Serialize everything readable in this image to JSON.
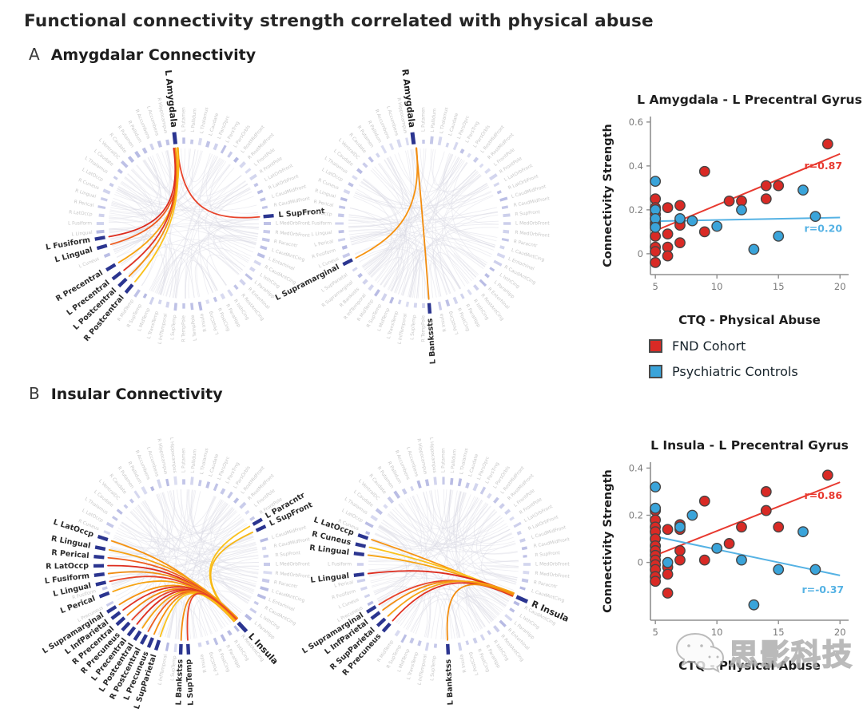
{
  "title": "Functional connectivity strength correlated with physical abuse",
  "watermark": {
    "text": "思影科技",
    "icon": "wechat-icon"
  },
  "panels": {
    "a": {
      "tag": "A",
      "heading": "Amygdalar Connectivity"
    },
    "b": {
      "tag": "B",
      "heading": "Insular Connectivity"
    }
  },
  "legend": {
    "items": [
      {
        "label": "FND Cohort",
        "color": "#d92a25"
      },
      {
        "label": "Psychiatric Controls",
        "color": "#3aa4da"
      }
    ]
  },
  "colors": {
    "ring_tick": "#b1b5e1",
    "highlight_tick": "#2b3590",
    "background_chord": "#dcdce6",
    "red_line": "#e8392f",
    "blue_line": "#55b2e4"
  },
  "ring_labels": [
    "L Putamen",
    "L Pallidum",
    "L Thalamus",
    "L Caudate",
    "L ParsOprc",
    "L ParsTrng",
    "L ParsOrbls",
    "L RostMidFront",
    "R RostMidFront",
    "L FrontPole",
    "R FrontPole",
    "L LatOrbFront",
    "R LatOrbFront",
    "L CaudMidFront",
    "R CaudMidFront",
    "R SupFront",
    "L MedOrbFront",
    "R MedOrbFront",
    "R Paracntr",
    "L CaudAntCing",
    "L Entorhinal",
    "R CaudAntCing",
    "L IsthCing",
    "L ParaHipp",
    "R Entorhinal",
    "R RostAntCing",
    "R IsthCing",
    "R ParaHipp",
    "R PostCing",
    "L PostCing",
    "R Insula",
    "L TempPole",
    "R TempPole",
    "L SupTemp",
    "L InfTemporal",
    "L TransTemp",
    "L MidTemp",
    "R SupTemp",
    "R MidTemp",
    "R InfTemporal",
    "R Bankssts",
    "R Supramarginal",
    "L SupParietal",
    "L Precuneus",
    "L Cuneus",
    "R Fusiform",
    "L Perical",
    "L Lingual",
    "L Fusiform",
    "R LatOccp",
    "R Perical",
    "R Lingual",
    "R Cuneus",
    "L LatOccp",
    "L Thalamus",
    "L Caudate",
    "L VentralDC",
    "R Caudate",
    "R Putamen",
    "R Pallidum",
    "R Accumbens",
    "L Accumbens",
    "R Hippocampus",
    "L Hippocampus"
  ],
  "connectograms": [
    {
      "name": "left-amygdala-circle",
      "panel": "A",
      "seed": 7,
      "hub": {
        "label": "L Amygdala",
        "angle": 354
      },
      "targets": [
        {
          "label": "L SupFront",
          "angle": 85,
          "color": "#e8432a"
        },
        {
          "label": "L Fusiform",
          "angle": 260,
          "color": "#dd2c1e"
        },
        {
          "label": "L Lingual",
          "angle": 254,
          "color": "#ef5d1f"
        },
        {
          "label": "R Precentral",
          "angle": 239,
          "color": "#f6a312"
        },
        {
          "label": "L Precentral",
          "angle": 232,
          "color": "#e03324"
        },
        {
          "label": "L Postcentral",
          "angle": 226,
          "color": "#f28c0e"
        },
        {
          "label": "R Postcentral",
          "angle": 220,
          "color": "#fbc21a"
        }
      ]
    },
    {
      "name": "right-amygdala-circle",
      "panel": "A",
      "seed": 11,
      "hub": {
        "label": "R Amygdala",
        "angle": 353
      },
      "targets": [
        {
          "label": "L Supramarginal",
          "angle": 243,
          "color": "#f6920f"
        },
        {
          "label": "L Bankssts",
          "angle": 176,
          "color": "#f28c0e"
        }
      ]
    },
    {
      "name": "left-insula-circle",
      "panel": "B",
      "seed": 23,
      "hub": {
        "label": "L Insula",
        "angle": 137
      },
      "targets": [
        {
          "label": "L Paracntr",
          "angle": 60,
          "color": "#fbc21a"
        },
        {
          "label": "L SupFront",
          "angle": 65,
          "color": "#f7b713"
        },
        {
          "label": "L LatOccp",
          "angle": 288,
          "color": "#f6920f"
        },
        {
          "label": "R Lingual",
          "angle": 281,
          "color": "#f6a312"
        },
        {
          "label": "R Perical",
          "angle": 275,
          "color": "#ef5d1f"
        },
        {
          "label": "R LatOccp",
          "angle": 269,
          "color": "#dd2c1e"
        },
        {
          "label": "L Fusiform",
          "angle": 263,
          "color": "#f28c0e"
        },
        {
          "label": "L Lingual",
          "angle": 257,
          "color": "#e8432a"
        },
        {
          "label": "L Perical",
          "angle": 249,
          "color": "#f6a312"
        },
        {
          "label": "L Supramarginal",
          "angle": 238,
          "color": "#f6920f"
        },
        {
          "label": "L InfParietal",
          "angle": 233,
          "color": "#e03324"
        },
        {
          "label": "R Precentral",
          "angle": 228,
          "color": "#f28c0e"
        },
        {
          "label": "R Precuneus",
          "angle": 223,
          "color": "#e8432a"
        },
        {
          "label": "L Precentral",
          "angle": 218,
          "color": "#dd2c1e"
        },
        {
          "label": "L Postcentral",
          "angle": 213,
          "color": "#f6a312"
        },
        {
          "label": "R Postcentral",
          "angle": 208,
          "color": "#ef5d1f"
        },
        {
          "label": "L Precuneus",
          "angle": 203,
          "color": "#f6920f"
        },
        {
          "label": "L SupParietal",
          "angle": 198,
          "color": "#fbc21a"
        },
        {
          "label": "L Bankstss",
          "angle": 182,
          "color": "#f28c0e"
        },
        {
          "label": "L SupTemp",
          "angle": 177,
          "color": "#e8432a"
        }
      ]
    },
    {
      "name": "right-insula-circle",
      "panel": "B",
      "seed": 31,
      "hub": {
        "label": "R Insula",
        "angle": 114
      },
      "targets": [
        {
          "label": "L LatOccp",
          "angle": 289,
          "color": "#f6920f"
        },
        {
          "label": "R Cuneus",
          "angle": 283,
          "color": "#fbc21a"
        },
        {
          "label": "R Lingual",
          "angle": 277,
          "color": "#f6a312"
        },
        {
          "label": "L Lingual",
          "angle": 263,
          "color": "#dd2c1e"
        },
        {
          "label": "L Supramarginal",
          "angle": 238,
          "color": "#e8432a"
        },
        {
          "label": "L InfParietal",
          "angle": 233,
          "color": "#f28c0e"
        },
        {
          "label": "R SupParietal",
          "angle": 227,
          "color": "#f6a312"
        },
        {
          "label": "R Precuneus",
          "angle": 222,
          "color": "#e03324"
        },
        {
          "label": "L Bankstss",
          "angle": 177,
          "color": "#f28c0e"
        }
      ]
    }
  ],
  "chart_data": [
    {
      "type": "scatter",
      "title": "L Amygdala - L Precentral Gyrus",
      "xlabel": "CTQ - Physical Abuse",
      "ylabel": "Connectivity Strength",
      "xlim": [
        4.6,
        20.7
      ],
      "ylim": [
        -0.095,
        0.625
      ],
      "xticks": [
        5,
        10,
        15,
        20
      ],
      "yticks": [
        0,
        0.2,
        0.4,
        0.6
      ],
      "legend_position": "below",
      "series": [
        {
          "name": "FND Cohort",
          "color": "#d92a25",
          "line_color": "#e8392f",
          "points": [
            [
              5,
              0.25
            ],
            [
              5,
              0.21
            ],
            [
              5,
              0.18
            ],
            [
              5,
              0.16
            ],
            [
              5,
              0.14
            ],
            [
              5,
              0.13
            ],
            [
              5,
              0.08
            ],
            [
              5,
              0.03
            ],
            [
              5,
              0.01
            ],
            [
              5,
              -0.04
            ],
            [
              6,
              0.21
            ],
            [
              6,
              0.09
            ],
            [
              6,
              0.03
            ],
            [
              6,
              -0.01
            ],
            [
              7,
              0.22
            ],
            [
              7,
              0.15
            ],
            [
              7,
              0.13
            ],
            [
              7,
              0.05
            ],
            [
              9,
              0.375
            ],
            [
              9,
              0.1
            ],
            [
              11,
              0.24
            ],
            [
              12,
              0.24
            ],
            [
              14,
              0.31
            ],
            [
              14,
              0.25
            ],
            [
              15,
              0.31
            ],
            [
              19,
              0.5
            ]
          ],
          "trend": {
            "x1": 5,
            "y1": 0.105,
            "x2": 20,
            "y2": 0.455
          },
          "r_label": {
            "text": "r=0.87",
            "x": 17.1,
            "y": 0.385
          }
        },
        {
          "name": "Psychiatric Controls",
          "color": "#3aa4da",
          "line_color": "#55b2e4",
          "points": [
            [
              5,
              0.33
            ],
            [
              5,
              0.2
            ],
            [
              5,
              0.16
            ],
            [
              5,
              0.12
            ],
            [
              7,
              0.16
            ],
            [
              8,
              0.15
            ],
            [
              10,
              0.125
            ],
            [
              12,
              0.2
            ],
            [
              13,
              0.02
            ],
            [
              15,
              0.08
            ],
            [
              17,
              0.29
            ],
            [
              18,
              0.17
            ]
          ],
          "trend": {
            "x1": 5,
            "y1": 0.148,
            "x2": 20,
            "y2": 0.165
          },
          "r_label": {
            "text": "r=0.20",
            "x": 17.1,
            "y": 0.1
          }
        }
      ]
    },
    {
      "type": "scatter",
      "title": "L Insula - L Precentral Gyrus",
      "xlabel": "CTQ - Physical Abuse",
      "ylabel": "Connectivity Strength",
      "xlim": [
        4.6,
        20.7
      ],
      "ylim": [
        -0.245,
        0.425
      ],
      "xticks": [
        5,
        10,
        15,
        20
      ],
      "yticks": [
        0,
        0.2,
        0.4
      ],
      "series": [
        {
          "name": "FND Cohort",
          "color": "#d92a25",
          "line_color": "#e8392f",
          "points": [
            [
              5,
              0.22
            ],
            [
              5,
              0.18
            ],
            [
              5,
              0.15
            ],
            [
              5,
              0.13
            ],
            [
              5,
              0.1
            ],
            [
              5,
              0.07
            ],
            [
              5,
              0.05
            ],
            [
              5,
              0.03
            ],
            [
              5,
              0.01
            ],
            [
              5,
              -0.01
            ],
            [
              5,
              -0.03
            ],
            [
              5,
              -0.06
            ],
            [
              5,
              -0.08
            ],
            [
              6,
              0.14
            ],
            [
              6,
              -0.02
            ],
            [
              6,
              -0.05
            ],
            [
              6,
              -0.13
            ],
            [
              7,
              0.16
            ],
            [
              7,
              0.15
            ],
            [
              7,
              0.14
            ],
            [
              7,
              0.05
            ],
            [
              7,
              0.01
            ],
            [
              9,
              0.26
            ],
            [
              9,
              0.01
            ],
            [
              11,
              0.08
            ],
            [
              12,
              0.15
            ],
            [
              14,
              0.3
            ],
            [
              14,
              0.22
            ],
            [
              15,
              0.15
            ],
            [
              19,
              0.37
            ]
          ],
          "trend": {
            "x1": 5,
            "y1": 0.03,
            "x2": 20,
            "y2": 0.34
          },
          "r_label": {
            "text": "r=0.86",
            "x": 17.1,
            "y": 0.27
          }
        },
        {
          "name": "Psychiatric Controls",
          "color": "#3aa4da",
          "line_color": "#55b2e4",
          "points": [
            [
              5,
              0.32
            ],
            [
              5,
              0.23
            ],
            [
              6,
              0
            ],
            [
              7,
              0.15
            ],
            [
              8,
              0.2
            ],
            [
              10,
              0.06
            ],
            [
              12,
              0.01
            ],
            [
              13,
              -0.18
            ],
            [
              15,
              -0.03
            ],
            [
              17,
              0.13
            ],
            [
              18,
              -0.03
            ]
          ],
          "trend": {
            "x1": 5,
            "y1": 0.11,
            "x2": 20,
            "y2": -0.055
          },
          "r_label": {
            "text": "r=-0.37",
            "x": 16.9,
            "y": -0.13
          }
        }
      ]
    }
  ]
}
